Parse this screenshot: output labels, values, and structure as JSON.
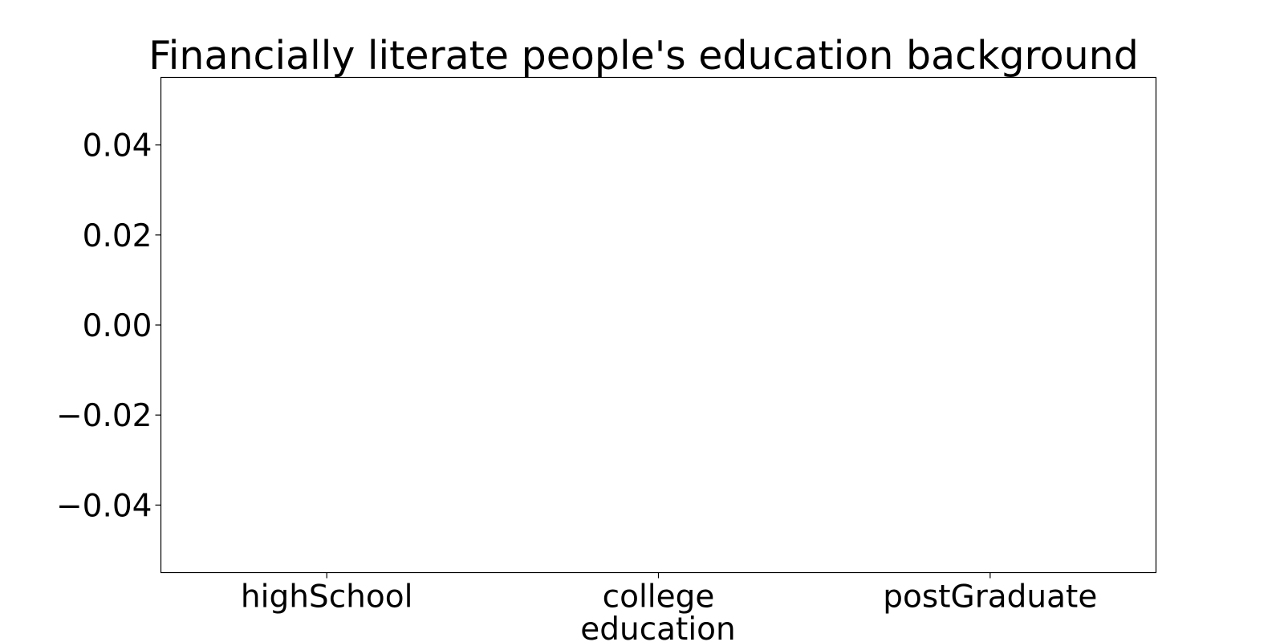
{
  "chart_data": {
    "type": "bar",
    "title": "Financially literate people's education background",
    "categories": [
      "highSchool",
      "college",
      "postGraduate"
    ],
    "values": [
      0,
      0,
      0
    ],
    "xlabel": "education",
    "ylabel": "",
    "ylim": [
      -0.055,
      0.055
    ],
    "yticks": [
      0.04,
      0.02,
      0.0,
      -0.02,
      -0.04
    ],
    "ytick_labels": [
      "0.04",
      "0.02",
      "0.00",
      "−0.02",
      "−0.04"
    ],
    "grid": false,
    "colors": {
      "axis": "#000000",
      "background": "#ffffff",
      "bar": "#1f77b4"
    }
  }
}
